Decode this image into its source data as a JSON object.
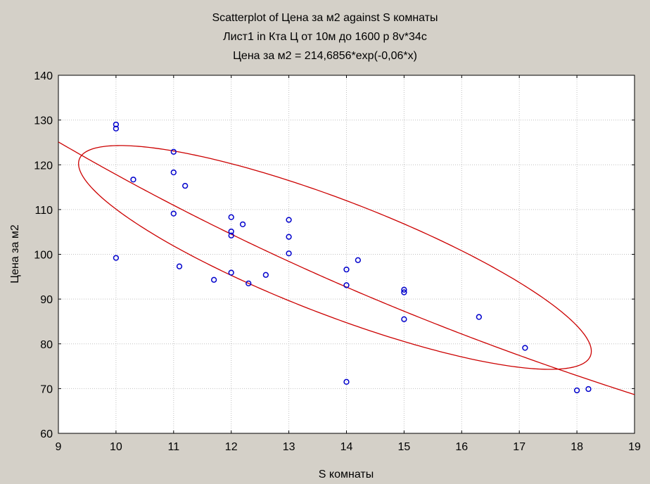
{
  "title_lines": [
    "Scatterplot of Цена за м2 against S комнаты",
    "Лист1 in Кта Ц от 10м до 1600 р 8v*34c",
    "Цена за м2 = 214,6856*exp(-0,06*x)"
  ],
  "chart_data": {
    "type": "scatter",
    "xlabel": "S комнаты",
    "ylabel": "Цена за м2",
    "xlim": [
      9,
      19
    ],
    "ylim": [
      60,
      140
    ],
    "xticks": [
      9,
      10,
      11,
      12,
      13,
      14,
      15,
      16,
      17,
      18,
      19
    ],
    "yticks": [
      60,
      70,
      80,
      90,
      100,
      110,
      120,
      130,
      140
    ],
    "grid": true,
    "point_color": "#0000cc",
    "fit_color": "#cc0000",
    "fit": {
      "formula": "214.6856*exp(-0.06*x)",
      "a": 214.6856,
      "b": -0.06
    },
    "points": [
      {
        "x": 10,
        "y": 129
      },
      {
        "x": 10,
        "y": 128.1
      },
      {
        "x": 10,
        "y": 99.2
      },
      {
        "x": 10.3,
        "y": 116.7
      },
      {
        "x": 11,
        "y": 122.9
      },
      {
        "x": 11,
        "y": 118.3
      },
      {
        "x": 11,
        "y": 109.1
      },
      {
        "x": 11.1,
        "y": 97.3
      },
      {
        "x": 11.2,
        "y": 115.3
      },
      {
        "x": 11.7,
        "y": 94.3
      },
      {
        "x": 12,
        "y": 108.3
      },
      {
        "x": 12,
        "y": 105.1
      },
      {
        "x": 12,
        "y": 104.2
      },
      {
        "x": 12,
        "y": 95.9
      },
      {
        "x": 12.2,
        "y": 106.7
      },
      {
        "x": 12.3,
        "y": 93.5
      },
      {
        "x": 12.6,
        "y": 95.4
      },
      {
        "x": 13,
        "y": 107.7
      },
      {
        "x": 13,
        "y": 103.9
      },
      {
        "x": 13,
        "y": 100.2
      },
      {
        "x": 14,
        "y": 96.6
      },
      {
        "x": 14,
        "y": 93.1
      },
      {
        "x": 14,
        "y": 71.5
      },
      {
        "x": 14.2,
        "y": 98.7
      },
      {
        "x": 15,
        "y": 92.1
      },
      {
        "x": 15,
        "y": 91.5
      },
      {
        "x": 15,
        "y": 85.5
      },
      {
        "x": 16.3,
        "y": 86
      },
      {
        "x": 17.1,
        "y": 79.1
      },
      {
        "x": 18,
        "y": 69.6
      },
      {
        "x": 18.2,
        "y": 69.9
      }
    ],
    "ellipse": {
      "center": [
        13.8,
        99.3
      ],
      "sx": 4.45,
      "sy": 25.0,
      "rho": -0.838
    }
  }
}
